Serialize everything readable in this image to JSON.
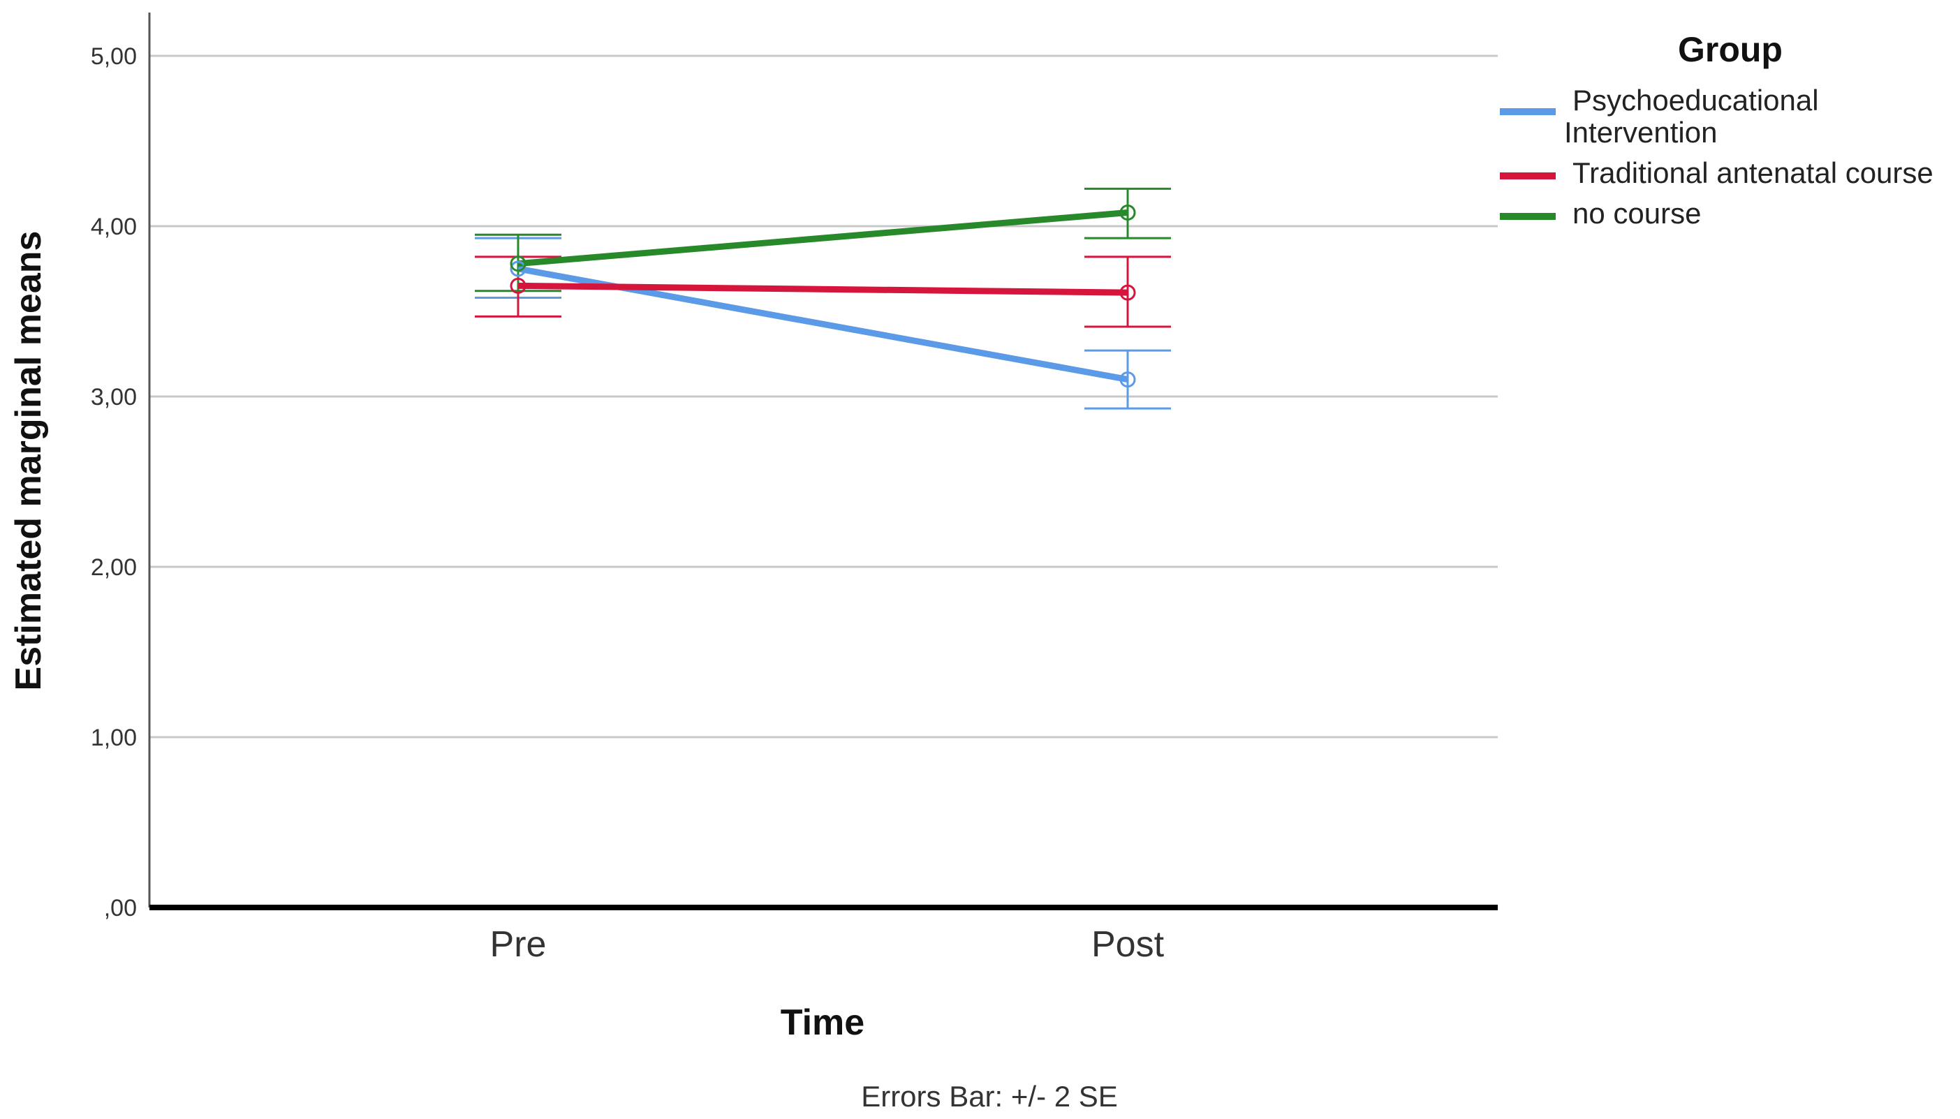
{
  "chart_data": {
    "type": "line",
    "title": "",
    "xlabel": "Time",
    "ylabel": "Estimated marginal means",
    "categories": [
      "Pre",
      "Post"
    ],
    "ylim": [
      0,
      5
    ],
    "ytick_values": [
      0,
      1,
      2,
      3,
      4,
      5
    ],
    "ytick_labels": [
      ",00",
      "1,00",
      "2,00",
      "3,00",
      "4,00",
      "5,00"
    ],
    "grid": true,
    "legend": {
      "title": "Group",
      "position": "right"
    },
    "series": [
      {
        "name": "Psychoeducational Intervention",
        "legend_lines": [
          "Psychoeducational",
          "Intervention"
        ],
        "color": "#5b9ae6",
        "values": [
          3.75,
          3.1
        ],
        "error_low": [
          3.58,
          2.93
        ],
        "error_high": [
          3.93,
          3.27
        ]
      },
      {
        "name": "Traditional antenatal course",
        "legend_lines": [
          "Traditional antenatal course"
        ],
        "color": "#d6153c",
        "values": [
          3.65,
          3.61
        ],
        "error_low": [
          3.47,
          3.41
        ],
        "error_high": [
          3.82,
          3.82
        ]
      },
      {
        "name": "no course",
        "legend_lines": [
          "no course"
        ],
        "color": "#27892a",
        "values": [
          3.78,
          4.08
        ],
        "error_low": [
          3.62,
          3.93
        ],
        "error_high": [
          3.95,
          4.22
        ]
      }
    ],
    "footnote": "Errors Bar: +/- 2 SE"
  }
}
